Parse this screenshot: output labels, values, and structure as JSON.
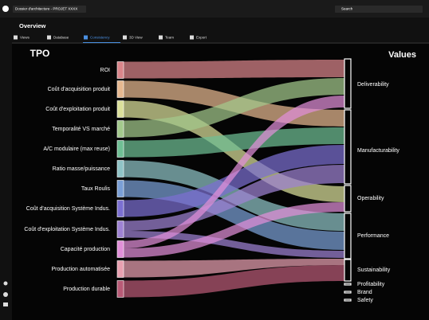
{
  "topbar": {
    "title": "Dossier d'architecture - PROJET XXXX",
    "search": "Search"
  },
  "header": {
    "title": "Overview"
  },
  "tabs": [
    "Views",
    "Database",
    "Consistency",
    "3D View",
    "Team",
    "Export"
  ],
  "sankey": {
    "left_header": "TPO",
    "right_header": "Values",
    "left_nodes": [
      "ROI",
      "Coût d'acquisition produit",
      "Coût d'exploitation produit",
      "Temporalité VS marché",
      "A/C modulaire (max reuse)",
      "Ratio masse/puissance",
      "Taux Roulis",
      "Coût d'acquisition Système Indus.",
      "Coût d'exploitation Système Indus.",
      "Capacité production",
      "Production automatisée",
      "Production durable"
    ],
    "right_nodes": [
      "Deliverability",
      "Manufacturability",
      "Operability",
      "Performance",
      "Sustainability",
      "Profitability",
      "Brand",
      "Safety"
    ]
  }
}
